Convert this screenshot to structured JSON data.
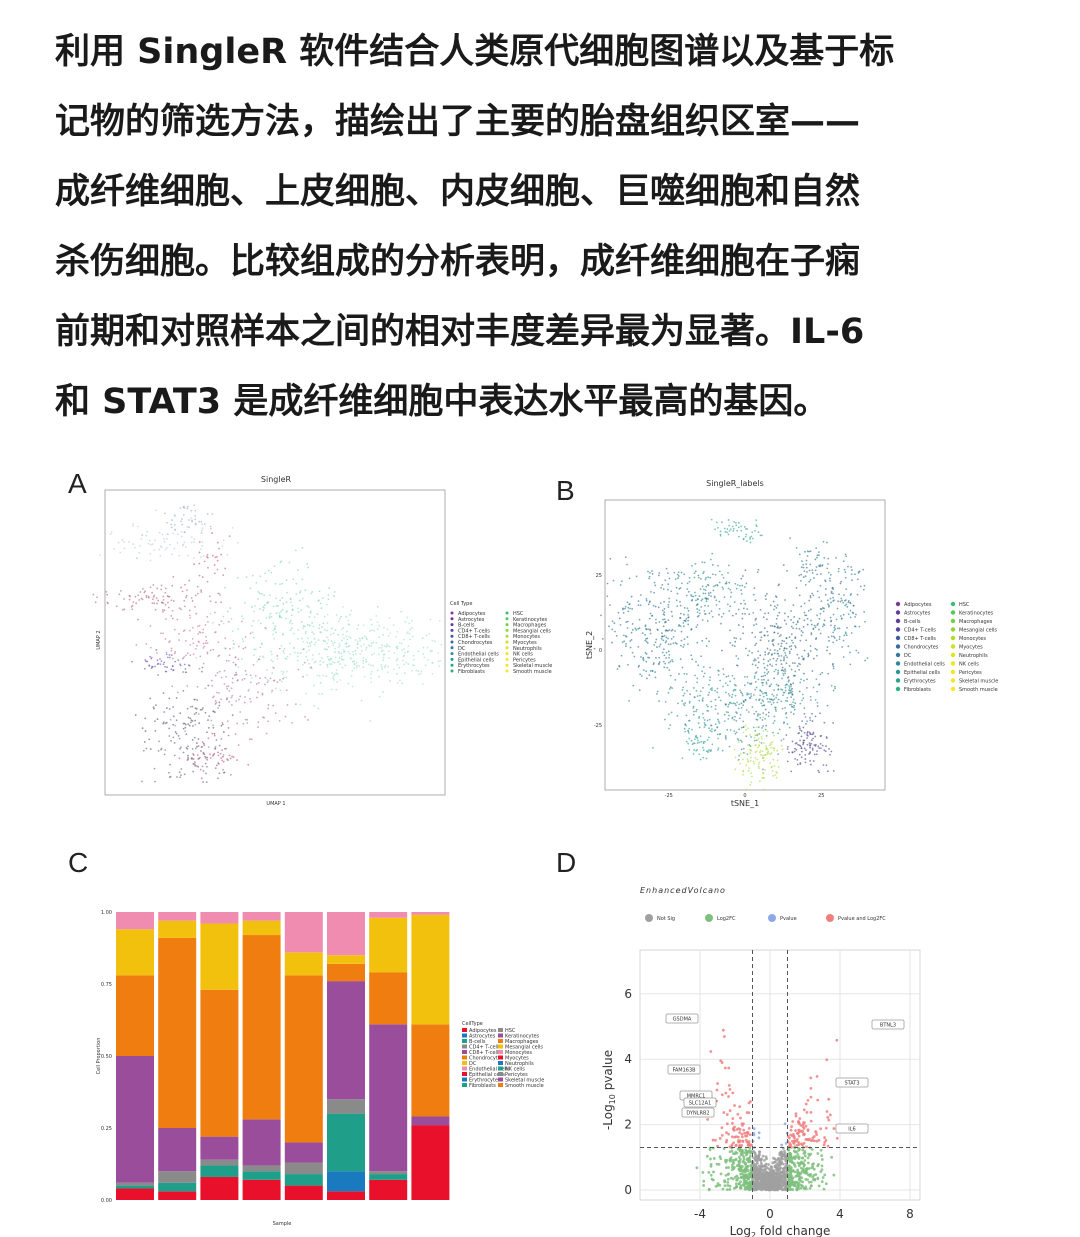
{
  "paragraph": [
    "利用 SingleR 软件结合人类原代细胞图谱以及基于标",
    "记物的筛选方法，描绘出了主要的胎盘组织区室——",
    "成纤维细胞、上皮细胞、内皮细胞、巨噬细胞和自然",
    "杀伤细胞。比较组成的分析表明，成纤维细胞在子痫",
    "前期和对照样本之间的相对丰度差异最为显著。IL-6",
    "和 STAT3 是成纤维细胞中表达水平最高的基因。"
  ],
  "cell_types": [
    "Adipocytes",
    "Astrocytes",
    "B-cells",
    "CD4+ T-cells",
    "CD8+ T-cells",
    "Chondrocytes",
    "DC",
    "Endothelial cells",
    "Epithelial cells",
    "Erythrocytes",
    "Fibroblasts",
    "HSC",
    "Keratinocytes",
    "Macrophages",
    "Mesangial cells",
    "Monocytes",
    "Myocytes",
    "Neutrophils",
    "NK cells",
    "Pericytes",
    "Skeletal muscle",
    "Smooth muscle"
  ],
  "panel_a": {
    "label": "A",
    "title": "SingleR",
    "x_label": "UMAP 1",
    "y_label": "UMAP 2",
    "legend_title": "Cell Type"
  },
  "panel_b": {
    "label": "B",
    "title": "SingleR_labels",
    "x_label": "tSNE_1",
    "y_label": "tSNE_2",
    "yticks": [
      25,
      0,
      -25
    ],
    "xticks": [
      -25,
      0,
      25
    ]
  },
  "panel_c": {
    "label": "C",
    "x_label": "Sample",
    "y_label": "Cell Proportion",
    "legend_title": "CellType",
    "yticks": [
      {
        "value": 0,
        "label": "0.00"
      },
      {
        "value": 0.25,
        "label": "0.25"
      },
      {
        "value": 0.5,
        "label": "0.50"
      },
      {
        "value": 0.75,
        "label": "0.75"
      },
      {
        "value": 1,
        "label": "1.00"
      }
    ],
    "segment_colors": [
      "#e8102a",
      "#1a7ac0",
      "#1f9e8a",
      "#8a8a8a",
      "#9a4d9a",
      "#f07d10",
      "#f2c10e",
      "#f08cb0"
    ],
    "bars": [
      [
        0.04,
        0,
        0.01,
        0.01,
        0.44,
        0.28,
        0.16,
        0.06
      ],
      [
        0.03,
        0,
        0.03,
        0.04,
        0.15,
        0.66,
        0.06,
        0.03
      ],
      [
        0.08,
        0,
        0.04,
        0.02,
        0.08,
        0.51,
        0.23,
        0.04
      ],
      [
        0.07,
        0,
        0.03,
        0.02,
        0.16,
        0.64,
        0.05,
        0.03
      ],
      [
        0.05,
        0,
        0.04,
        0.04,
        0.07,
        0.58,
        0.08,
        0.14
      ],
      [
        0.03,
        0.07,
        0.2,
        0.05,
        0.41,
        0.06,
        0.03,
        0.15
      ],
      [
        0.07,
        0,
        0.02,
        0.01,
        0.51,
        0.18,
        0.19,
        0.02
      ],
      [
        0.26,
        0,
        0,
        0,
        0.03,
        0.32,
        0.38,
        0.01
      ]
    ]
  },
  "panel_d": {
    "label": "D",
    "title": "EnhancedVolcano",
    "legend": [
      {
        "name": "Not Sig",
        "color": "#a0a0a0"
      },
      {
        "name": "Log2FC",
        "color": "#7fbf7f"
      },
      {
        "name": "Pvalue",
        "color": "#8fa8e8"
      },
      {
        "name": "Pvalue and Log2FC",
        "color": "#f08080"
      }
    ],
    "y_label": [
      "-Log",
      "10",
      " pvalue"
    ],
    "x_label": [
      "Log",
      "2",
      " fold change"
    ],
    "yticks": [
      6,
      4,
      2,
      0
    ],
    "xticks": [
      -4,
      0,
      4,
      8
    ],
    "genes": [
      "GSDMA",
      "FAM163B",
      "MMRC1",
      "SLC12A1",
      "DYNLRB2",
      "BTNL3",
      "STAT3",
      "IL6"
    ]
  }
}
